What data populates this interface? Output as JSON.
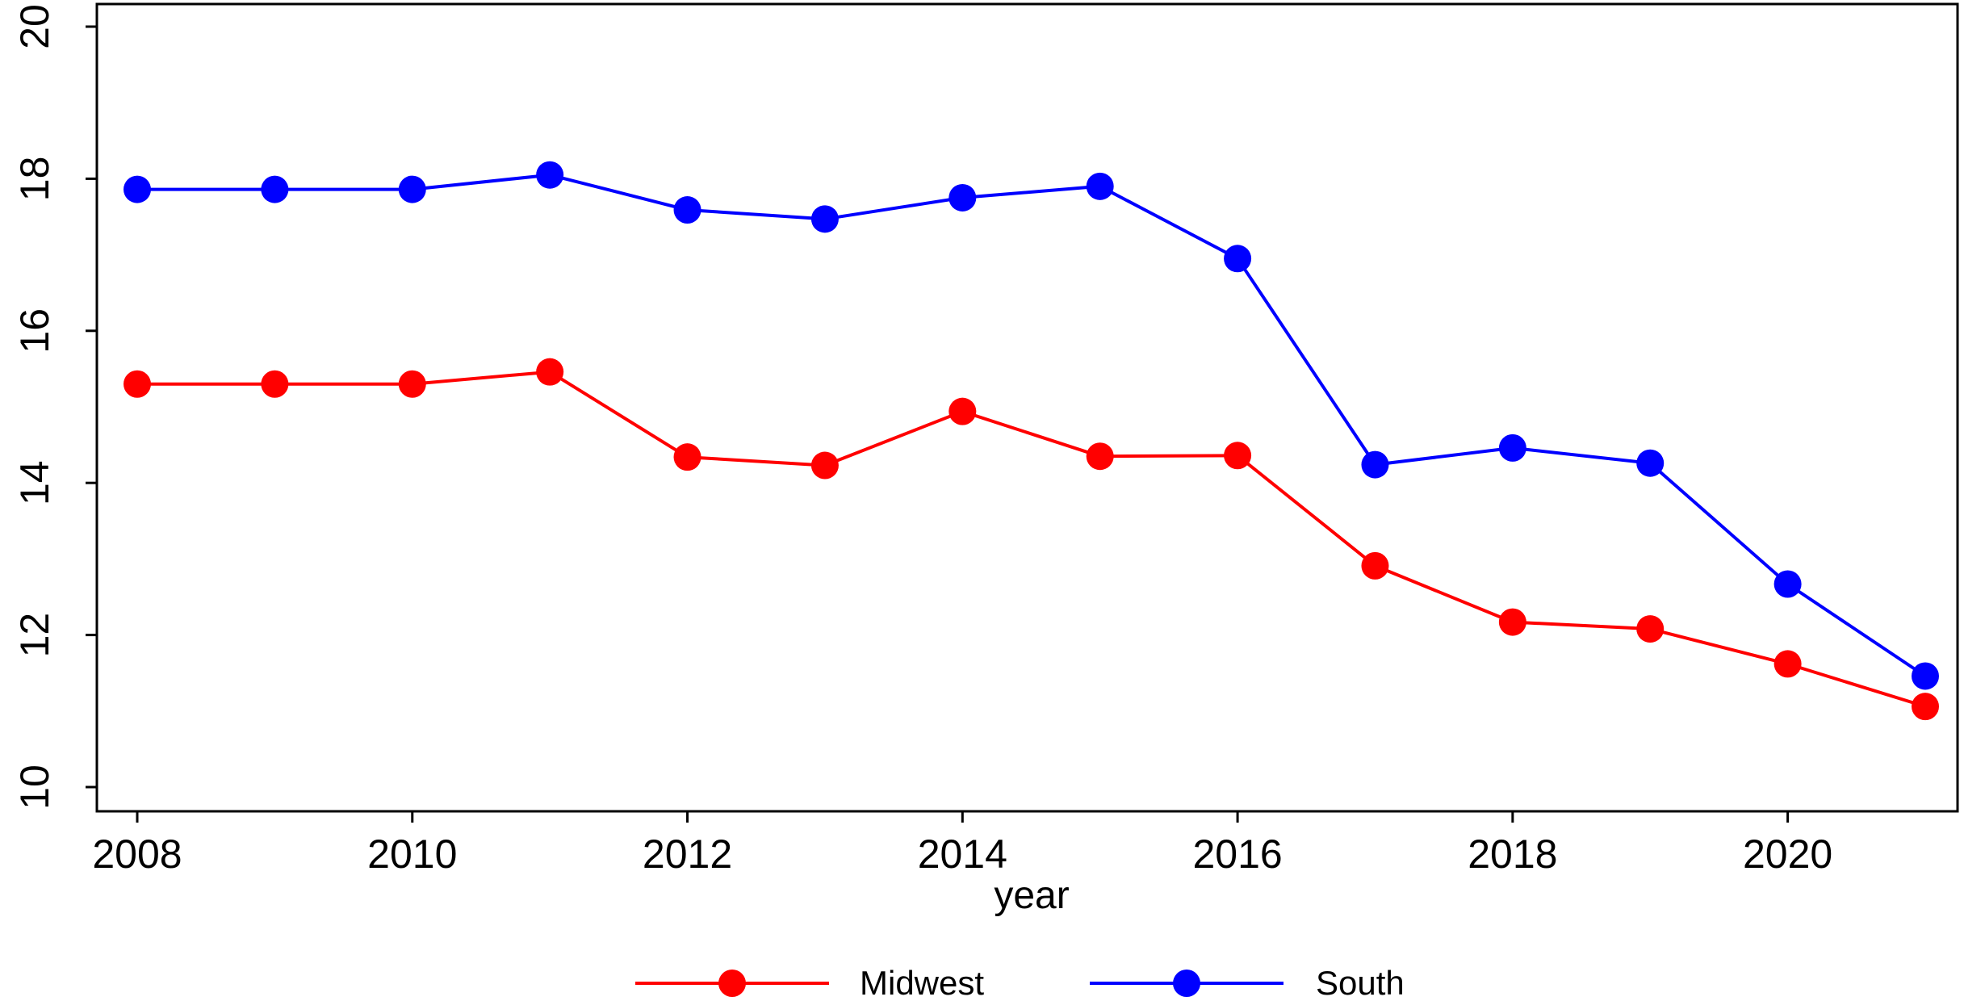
{
  "chart_data": {
    "type": "line",
    "title": "",
    "xlabel": "year",
    "ylabel": "",
    "xlim": [
      2008,
      2021
    ],
    "ylim": [
      10,
      20
    ],
    "x_ticks": [
      2008,
      2010,
      2012,
      2014,
      2016,
      2018,
      2020
    ],
    "y_ticks": [
      10,
      12,
      14,
      16,
      18,
      20
    ],
    "grid": false,
    "legend_position": "bottom",
    "x": [
      2008,
      2009,
      2010,
      2011,
      2012,
      2013,
      2014,
      2015,
      2016,
      2017,
      2018,
      2019,
      2020,
      2021
    ],
    "series": [
      {
        "name": "Midwest",
        "color": "#ff0000",
        "values": [
          15.3,
          15.3,
          15.3,
          15.46,
          14.34,
          14.23,
          14.94,
          14.35,
          14.36,
          12.91,
          12.17,
          12.08,
          11.62,
          11.06
        ]
      },
      {
        "name": "South",
        "color": "#0000ff",
        "values": [
          17.86,
          17.86,
          17.86,
          18.05,
          17.59,
          17.47,
          17.75,
          17.9,
          16.95,
          14.24,
          14.46,
          14.26,
          12.67,
          11.46
        ]
      }
    ]
  }
}
